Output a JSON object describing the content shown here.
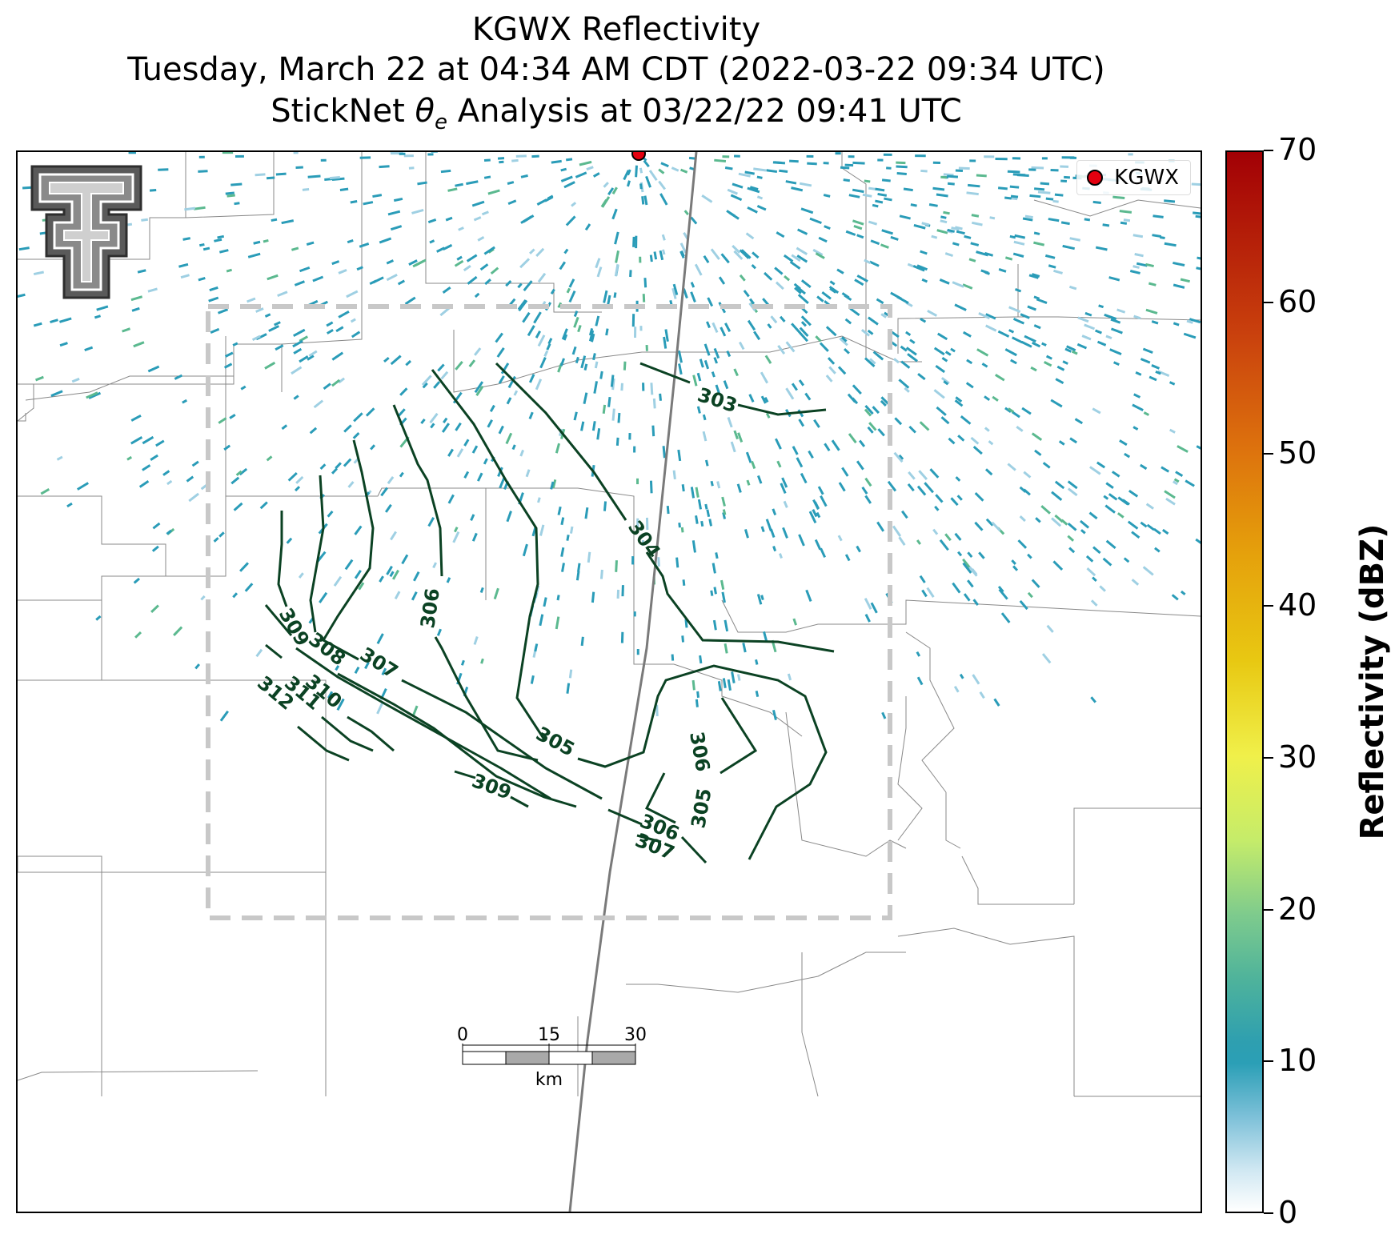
{
  "title": {
    "line1": "KGWX Reflectivity",
    "line2": "Tuesday, March 22 at 04:34 AM CDT (2022-03-22 09:34 UTC)",
    "line3_prefix": "StickNet ",
    "line3_symbol": "θ",
    "line3_subscript": "e",
    "line3_suffix": " Analysis at 03/22/22 09:41 UTC"
  },
  "legend": {
    "radar_label": "KGWX",
    "marker_color": "#e3000f"
  },
  "colorbar": {
    "label": "Reflectivity (dBZ)",
    "ticks": [
      "70",
      "60",
      "50",
      "40",
      "30",
      "20",
      "10",
      "0"
    ],
    "min": 0,
    "max": 70
  },
  "scale_bar": {
    "labels": [
      "0",
      "15",
      "30"
    ],
    "unit": "km"
  },
  "contours": {
    "color": "#0b4223",
    "labels": [
      "303",
      "304",
      "305",
      "306",
      "307",
      "308",
      "309",
      "310",
      "311",
      "312",
      "305",
      "306",
      "309",
      "306",
      "307",
      "305",
      "306"
    ]
  },
  "logo": {
    "name": "Texas Tech double T"
  },
  "colors": {
    "echo": "#2a9cb8",
    "echo_light": "#9fd0e3",
    "analysis_box": "#c8c8c8",
    "boundary": "#888888"
  }
}
